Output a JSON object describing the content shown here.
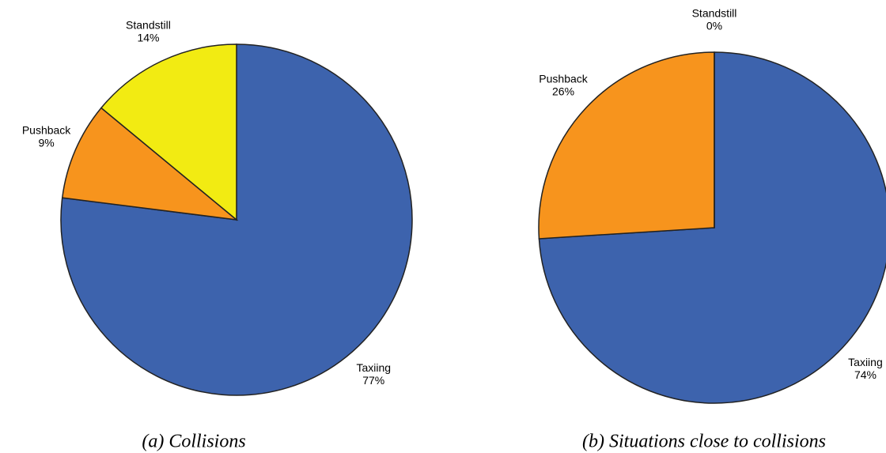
{
  "chart_data": [
    {
      "type": "pie",
      "title": "(a) Collisions",
      "categories": [
        "Taxiing",
        "Pushback",
        "Standstill"
      ],
      "values": [
        77,
        9,
        14
      ],
      "value_labels": [
        "77%",
        "9%",
        "14%"
      ],
      "colors": [
        "#3d63ad",
        "#f7941d",
        "#f2eb12"
      ]
    },
    {
      "type": "pie",
      "title": "(b) Situations close to collisions",
      "categories": [
        "Taxiing",
        "Pushback",
        "Standstill"
      ],
      "values": [
        74,
        26,
        0
      ],
      "value_labels": [
        "74%",
        "26%",
        "0%"
      ],
      "colors": [
        "#3d63ad",
        "#f7941d",
        "#f2eb12"
      ]
    }
  ]
}
